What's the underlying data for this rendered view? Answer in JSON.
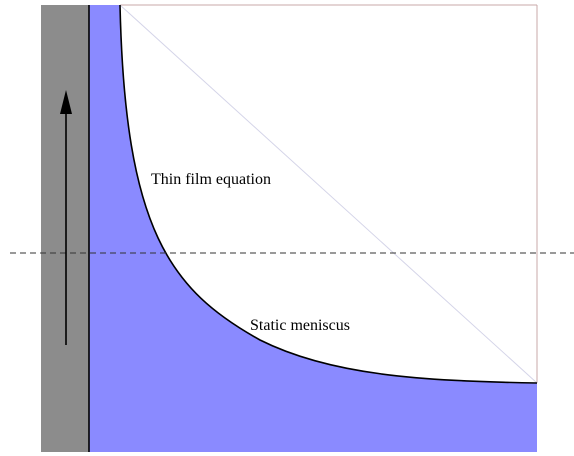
{
  "labels": {
    "thin_film": "Thin film equation",
    "static_meniscus": "Static meniscus"
  }
}
